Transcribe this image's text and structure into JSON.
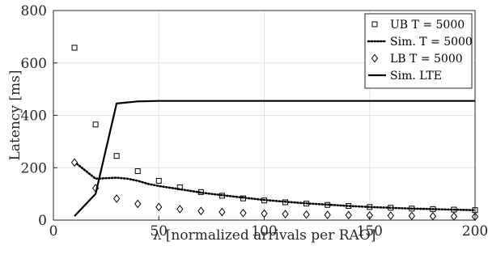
{
  "chart_data": {
    "type": "line",
    "title": "",
    "xlabel": "λ [normalized arrivals per RAO]",
    "ylabel": "Latency [ms]",
    "xlim": [
      0,
      200
    ],
    "ylim": [
      0,
      800
    ],
    "xticks": [
      "0",
      "50",
      "100",
      "150",
      "200"
    ],
    "yticks": [
      "0",
      "200",
      "400",
      "600",
      "800"
    ],
    "grid": true,
    "legend_position": "top-right",
    "series": [
      {
        "name": "UB T = 5000",
        "style": "square-markers",
        "x": [
          10,
          20,
          30,
          40,
          50,
          60,
          70,
          80,
          90,
          100,
          110,
          120,
          130,
          140,
          150,
          160,
          170,
          180,
          190,
          200
        ],
        "y": [
          658,
          365,
          245,
          187,
          150,
          125,
          107,
          93,
          83,
          75,
          68,
          63,
          58,
          54,
          50,
          47,
          44,
          42,
          40,
          38
        ]
      },
      {
        "name": "Sim. T = 5000",
        "style": "dotted-line",
        "x": [
          10,
          15,
          20,
          25,
          30,
          35,
          40,
          45,
          50,
          60,
          70,
          80,
          90,
          100,
          110,
          120,
          130,
          140,
          150,
          160,
          170,
          180,
          190,
          200
        ],
        "y": [
          222,
          190,
          158,
          160,
          162,
          158,
          150,
          138,
          130,
          118,
          105,
          95,
          86,
          77,
          70,
          64,
          59,
          54,
          50,
          47,
          44,
          42,
          40,
          38
        ]
      },
      {
        "name": "LB T = 5000",
        "style": "diamond-markers",
        "x": [
          10,
          20,
          30,
          40,
          50,
          60,
          70,
          80,
          90,
          100,
          110,
          120,
          130,
          140,
          150,
          160,
          170,
          180,
          190,
          200
        ],
        "y": [
          220,
          122,
          82,
          62,
          50,
          42,
          35,
          31,
          27,
          25,
          23,
          21,
          20,
          19,
          18,
          17,
          16,
          15,
          14,
          13
        ]
      },
      {
        "name": "Sim. LTE",
        "style": "solid-line",
        "x": [
          10,
          20,
          30,
          40,
          50,
          60,
          70,
          80,
          90,
          100,
          110,
          120,
          130,
          140,
          150,
          160,
          170,
          180,
          190,
          200
        ],
        "y": [
          15,
          100,
          445,
          453,
          455,
          455,
          455,
          455,
          455,
          455,
          455,
          455,
          455,
          455,
          455,
          455,
          455,
          455,
          455,
          455
        ]
      }
    ]
  }
}
